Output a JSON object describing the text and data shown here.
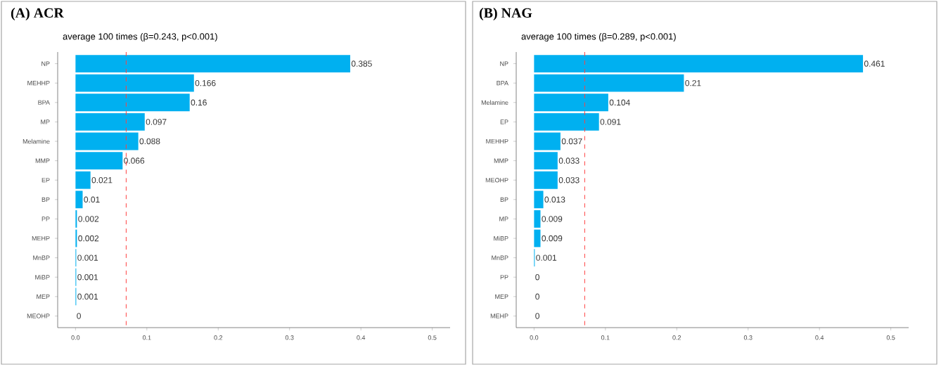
{
  "chart_data": [
    {
      "type": "bar",
      "orientation": "horizontal",
      "title": "(A) ACR",
      "subtitle": "average 100 times (β=0.243, p<0.001)",
      "categories": [
        "NP",
        "MEHHP",
        "BPA",
        "MP",
        "Melamine",
        "MMP",
        "EP",
        "BP",
        "PP",
        "MEHP",
        "MnBP",
        "MiBP",
        "MEP",
        "MEOHP"
      ],
      "values": [
        0.385,
        0.166,
        0.16,
        0.097,
        0.088,
        0.066,
        0.021,
        0.01,
        0.002,
        0.002,
        0.001,
        0.001,
        0.001,
        0
      ],
      "color": "#00b0f0",
      "data_labels": true,
      "xlim": [
        -0.025,
        0.525
      ],
      "xticks": [
        {
          "value": 0,
          "label": "0.0"
        },
        {
          "value": 0.1,
          "label": "0.1"
        },
        {
          "value": 0.2,
          "label": "0.2"
        },
        {
          "value": 0.3,
          "label": "0.3"
        },
        {
          "value": 0.4,
          "label": "0.4"
        },
        {
          "value": 0.5,
          "label": "0.5"
        }
      ],
      "ref_lines": [
        {
          "axis": "x",
          "value": 0.071,
          "color": "#ff4040",
          "line_style": "dashed"
        }
      ]
    },
    {
      "type": "bar",
      "orientation": "horizontal",
      "title": "(B) NAG",
      "subtitle": "average 100 times (β=0.289, p<0.001)",
      "categories": [
        "NP",
        "BPA",
        "Melamine",
        "EP",
        "MEHHP",
        "MMP",
        "MEOHP",
        "BP",
        "MP",
        "MiBP",
        "MnBP",
        "PP",
        "MEP",
        "MEHP"
      ],
      "values": [
        0.461,
        0.21,
        0.104,
        0.091,
        0.037,
        0.033,
        0.033,
        0.013,
        0.009,
        0.009,
        0.001,
        0,
        0,
        0
      ],
      "color": "#00b0f0",
      "data_labels": true,
      "xlim": [
        -0.025,
        0.525
      ],
      "xticks": [
        {
          "value": 0,
          "label": "0.0"
        },
        {
          "value": 0.1,
          "label": "0.1"
        },
        {
          "value": 0.2,
          "label": "0.2"
        },
        {
          "value": 0.3,
          "label": "0.3"
        },
        {
          "value": 0.4,
          "label": "0.4"
        },
        {
          "value": 0.5,
          "label": "0.5"
        }
      ],
      "ref_lines": [
        {
          "axis": "x",
          "value": 0.071,
          "color": "#ff4040",
          "line_style": "dashed"
        }
      ]
    }
  ]
}
